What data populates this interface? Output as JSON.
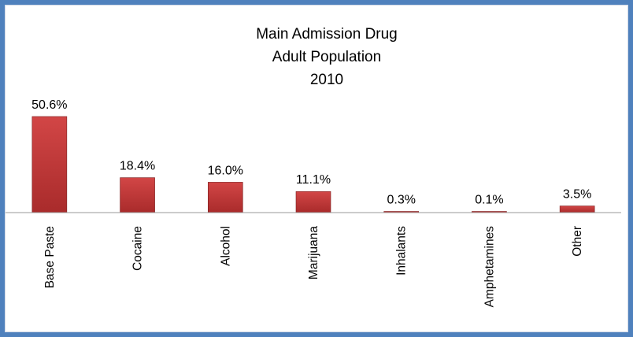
{
  "chart_data": {
    "type": "bar",
    "title_lines": [
      "Main Admission Drug",
      "Adult Population",
      "2010"
    ],
    "categories": [
      "Base Paste",
      "Cocaine",
      "Alcohol",
      "Marijuana",
      "Inhalants",
      "Amphetamines",
      "Other"
    ],
    "values": [
      50.6,
      18.4,
      16.0,
      11.1,
      0.3,
      0.1,
      3.5
    ],
    "data_labels": [
      "50.6%",
      "18.4%",
      "16.0%",
      "11.1%",
      "0.3%",
      "0.1%",
      "3.5%"
    ],
    "ylim": [
      0,
      50.6
    ],
    "grid": false,
    "legend": "none",
    "colors": {
      "bar_top": "#d24646",
      "bar_bottom": "#a92b2b",
      "bar_edge": "#7a1d1d",
      "axis": "#9a9a9a",
      "frame": "#4f81bd"
    }
  }
}
